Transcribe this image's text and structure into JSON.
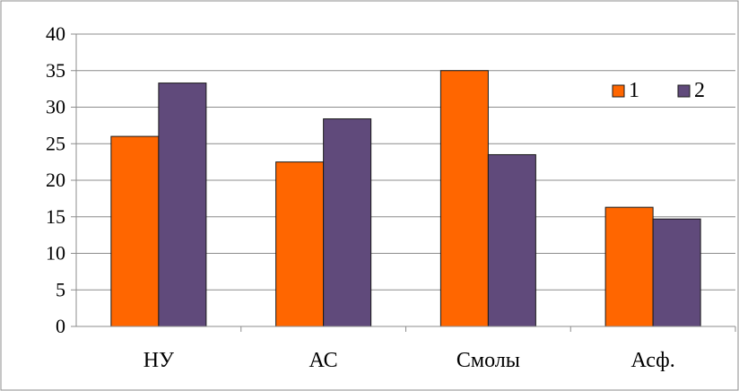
{
  "chart_data": {
    "type": "bar",
    "categories": [
      "НУ",
      "АС",
      "Смолы",
      "Асф."
    ],
    "series": [
      {
        "name": "1",
        "values": [
          26,
          22.5,
          35,
          16.3
        ],
        "color": "#FF6600"
      },
      {
        "name": "2",
        "values": [
          33.3,
          28.4,
          23.5,
          14.7
        ],
        "color": "#604A7B"
      }
    ],
    "ylim": [
      0,
      40
    ],
    "yticks": [
      "0",
      "5",
      "10",
      "15",
      "20",
      "25",
      "30",
      "35",
      "40"
    ],
    "grid": true,
    "legend": "top-right",
    "title": "",
    "xlabel": "",
    "ylabel": ""
  }
}
